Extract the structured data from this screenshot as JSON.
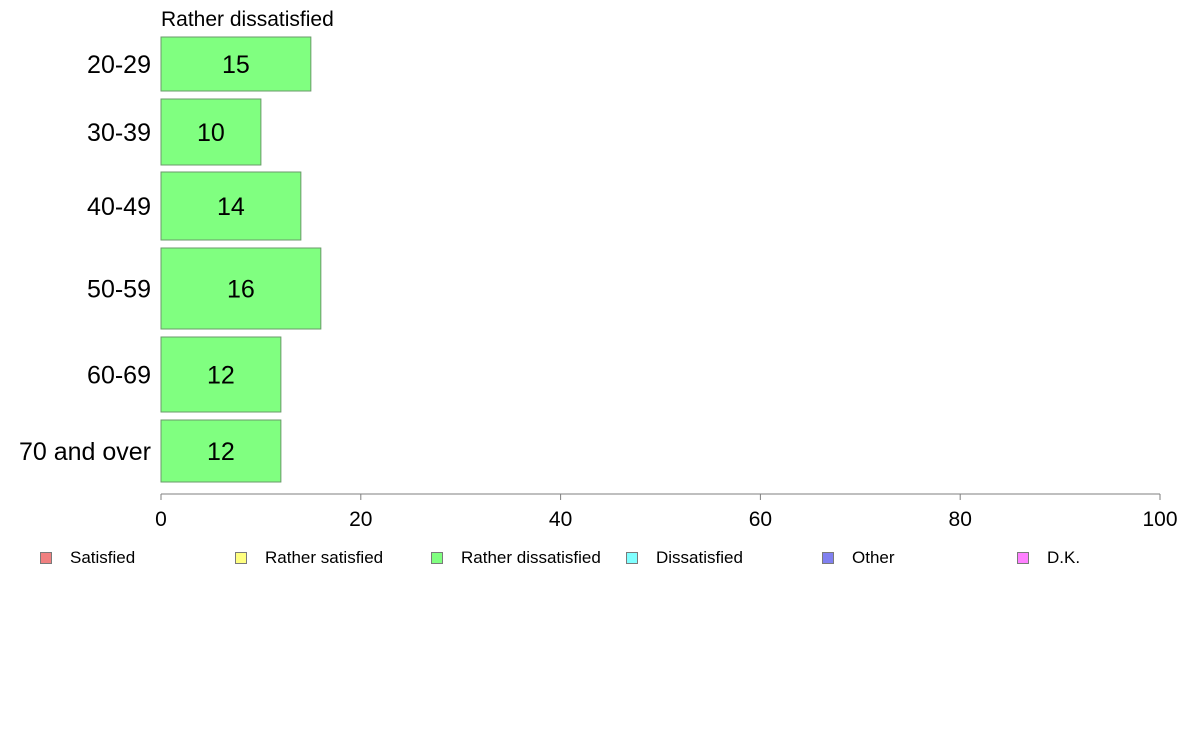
{
  "chart_data": {
    "type": "bar",
    "orientation": "horizontal",
    "title": "Rather dissatisfied",
    "categories": [
      "20-29",
      "30-39",
      "40-49",
      "50-59",
      "60-69",
      "70 and over"
    ],
    "series": [
      {
        "name": "Rather dissatisfied",
        "values": [
          15,
          10,
          14,
          16,
          12,
          12
        ],
        "color": "#80ff80"
      }
    ],
    "xlim": [
      0,
      100
    ],
    "xticks": [
      0,
      20,
      40,
      60,
      80,
      100
    ],
    "xlabel": "",
    "ylabel": "",
    "grid": false,
    "legend_position": "bottom",
    "legend": [
      {
        "label": "Satisfied",
        "color": "#f08080"
      },
      {
        "label": "Rather satisfied",
        "color": "#ffff80"
      },
      {
        "label": "Rather dissatisfied",
        "color": "#80ff80"
      },
      {
        "label": "Dissatisfied",
        "color": "#80ffff"
      },
      {
        "label": "Other",
        "color": "#8080f0"
      },
      {
        "label": "D.K.",
        "color": "#ff80ff"
      }
    ]
  }
}
